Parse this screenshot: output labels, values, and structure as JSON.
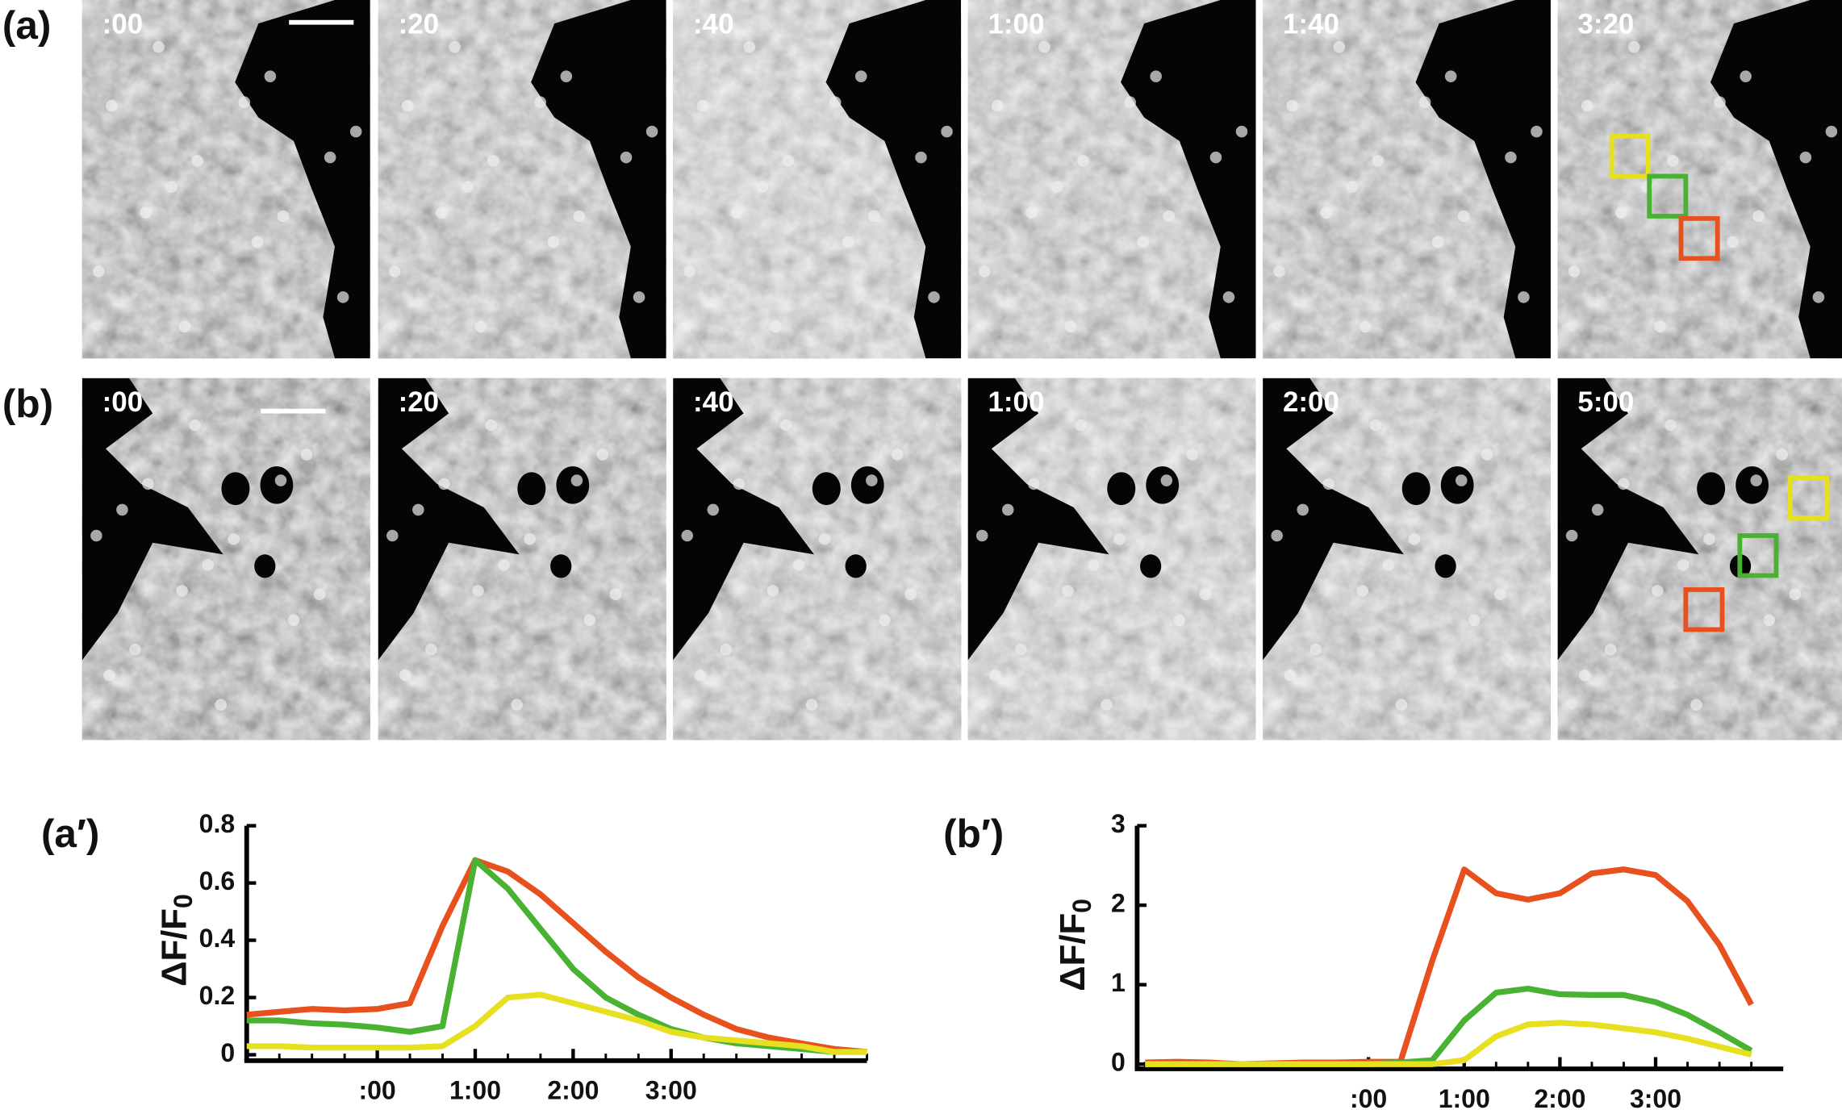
{
  "panels": [
    {
      "label": "(a)",
      "frames": [
        ":00",
        ":20",
        ":40",
        "1:00",
        "1:40",
        "3:20"
      ]
    },
    {
      "label": "(b)",
      "frames": [
        ":00",
        ":20",
        ":40",
        "1:00",
        "2:00",
        "5:00"
      ]
    }
  ],
  "chart_data": [
    {
      "type": "line",
      "panel_label": "(a′)",
      "y_label": "ΔF/F",
      "y_label_subscript": "0",
      "x": [
        -80,
        -60,
        -40,
        -20,
        0,
        20,
        40,
        60,
        80,
        100,
        120,
        140,
        160,
        180,
        200,
        220,
        240,
        260,
        280,
        300
      ],
      "xlim": [
        -80,
        300
      ],
      "xticks": [
        {
          "value": 0,
          "label": ":00"
        },
        {
          "value": 60,
          "label": "1:00"
        },
        {
          "value": 120,
          "label": "2:00"
        },
        {
          "value": 180,
          "label": "3:00"
        }
      ],
      "ylim": [
        0,
        0.8
      ],
      "yticks": [
        0,
        0.2,
        0.4,
        0.6,
        0.8
      ],
      "series": [
        {
          "color": "#e8501e",
          "values": [
            0.14,
            0.15,
            0.16,
            0.155,
            0.16,
            0.18,
            0.45,
            0.68,
            0.64,
            0.56,
            0.46,
            0.36,
            0.27,
            0.2,
            0.14,
            0.09,
            0.06,
            0.04,
            0.02,
            0.01
          ]
        },
        {
          "color": "#4ab233",
          "values": [
            0.12,
            0.12,
            0.11,
            0.105,
            0.095,
            0.08,
            0.1,
            0.68,
            0.58,
            0.44,
            0.3,
            0.2,
            0.14,
            0.09,
            0.06,
            0.04,
            0.03,
            0.02,
            0.01,
            0.01
          ]
        },
        {
          "color": "#e6e020",
          "values": [
            0.03,
            0.03,
            0.025,
            0.025,
            0.025,
            0.025,
            0.03,
            0.1,
            0.2,
            0.21,
            0.18,
            0.15,
            0.12,
            0.08,
            0.06,
            0.05,
            0.04,
            0.03,
            0.01,
            0.01
          ]
        }
      ]
    },
    {
      "type": "line",
      "panel_label": "(b′)",
      "y_label": "ΔF/F",
      "y_label_subscript": "0",
      "x": [
        -140,
        -120,
        -100,
        -80,
        -60,
        -40,
        -20,
        0,
        20,
        40,
        60,
        80,
        100,
        120,
        140,
        160,
        180,
        200,
        220,
        240
      ],
      "xlim": [
        -145,
        260
      ],
      "xticks": [
        {
          "value": 0,
          "label": ":00"
        },
        {
          "value": 60,
          "label": "1:00"
        },
        {
          "value": 120,
          "label": "2:00"
        },
        {
          "value": 180,
          "label": "3:00"
        }
      ],
      "ylim": [
        0,
        3
      ],
      "yticks": [
        0,
        1,
        2,
        3
      ],
      "series": [
        {
          "color": "#e8501e",
          "values": [
            0.02,
            0.03,
            0.02,
            0,
            0.01,
            0.02,
            0.02,
            0.03,
            0.03,
            1.3,
            2.45,
            2.15,
            2.07,
            2.15,
            2.4,
            2.45,
            2.38,
            2.05,
            1.5,
            0.75
          ]
        },
        {
          "color": "#4ab233",
          "values": [
            0,
            0,
            0,
            0,
            0,
            0,
            0,
            0,
            0.02,
            0.05,
            0.55,
            0.9,
            0.95,
            0.88,
            0.87,
            0.87,
            0.78,
            0.62,
            0.4,
            0.17
          ]
        },
        {
          "color": "#e6e020",
          "values": [
            0,
            0,
            0,
            0,
            0,
            0,
            0,
            0,
            0,
            0,
            0.05,
            0.35,
            0.5,
            0.52,
            0.5,
            0.45,
            0.4,
            0.32,
            0.22,
            0.12
          ]
        }
      ]
    }
  ]
}
